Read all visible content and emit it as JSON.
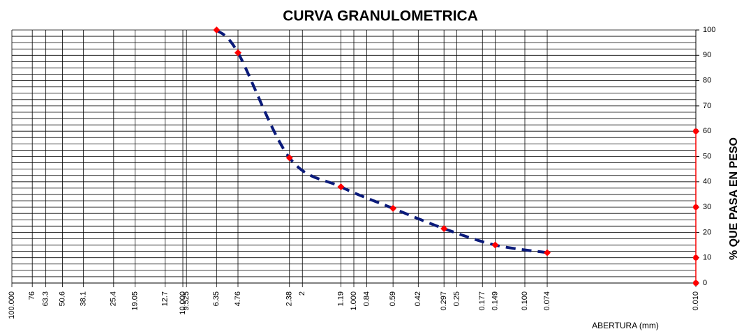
{
  "chart_data": {
    "type": "line",
    "title": "CURVA GRANULOMETRICA",
    "x_label": "ABERTURA (mm)",
    "y_label": "% QUE PASA EN PESO",
    "xscale": "log",
    "x_reversed": true,
    "xlim": [
      100,
      0.01
    ],
    "ylim": [
      0,
      100
    ],
    "xticks": [
      {
        "value": 100,
        "label": "100.000"
      },
      76,
      63.3,
      50.6,
      38.1,
      25.4,
      19.05,
      12.7,
      {
        "value": 10,
        "label": "10.000"
      },
      9.525,
      6.35,
      4.76,
      2.38,
      2,
      1.19,
      {
        "value": 1,
        "label": "1.000"
      },
      0.84,
      0.59,
      0.42,
      0.297,
      0.25,
      0.177,
      0.149,
      {
        "value": 0.1,
        "label": "0.100"
      },
      0.074,
      {
        "value": 0.01,
        "label": "0.010"
      }
    ],
    "yticks": [
      0,
      10,
      20,
      30,
      40,
      50,
      60,
      70,
      80,
      90,
      100
    ],
    "y_minor_ticks": [
      2.5,
      5,
      7.5,
      12.5,
      15,
      17.5,
      22.5,
      25,
      27.5,
      32.5,
      35,
      37.5,
      42.5,
      45,
      47.5,
      52.5,
      55,
      57.5,
      62.5,
      65,
      67.5,
      72.5,
      75,
      77.5,
      82.5,
      85,
      87.5,
      92.5,
      95,
      97.5
    ],
    "grid": true,
    "series": [
      {
        "color": "#0a1a7a",
        "marker_color": "#ff0000",
        "line": "dashed",
        "x": [
          6.35,
          4.76,
          2.38,
          1.19,
          0.59,
          0.297,
          0.149,
          0.074
        ],
        "values": [
          100,
          91,
          49.5,
          38,
          29.5,
          21.5,
          15,
          12
        ]
      },
      {
        "color": "#ff0000",
        "marker_color": "#ff0000",
        "line": "solid",
        "x": [
          0.01,
          0.01,
          0.01,
          0.01
        ],
        "values": [
          0,
          10,
          30,
          60
        ]
      }
    ]
  }
}
